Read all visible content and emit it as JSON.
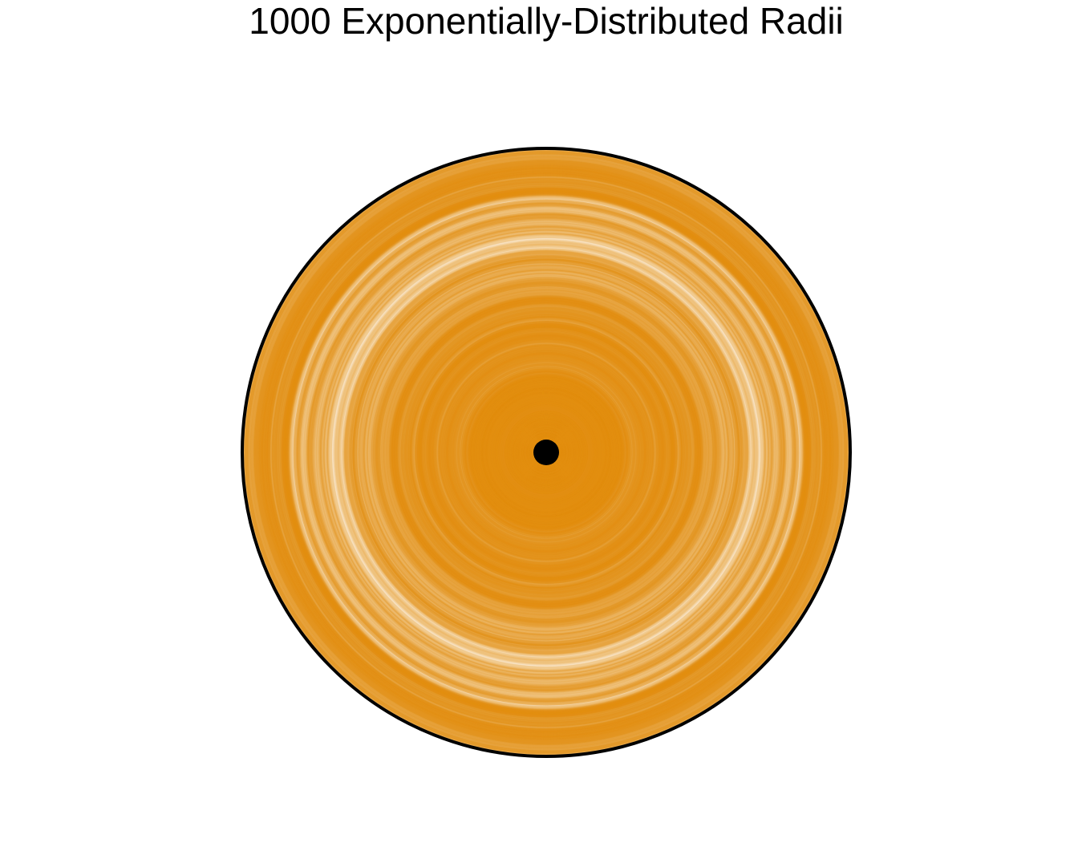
{
  "chart_data": {
    "type": "other",
    "title": "1000 Exponentially-Distributed Radii",
    "n_circles": 1000,
    "ring_color": "#E08E0B",
    "boundary_color": "#000000",
    "center_color": "#000000",
    "background_color": "#ffffff",
    "axes_visible": false,
    "grid": false,
    "legend": "none"
  }
}
